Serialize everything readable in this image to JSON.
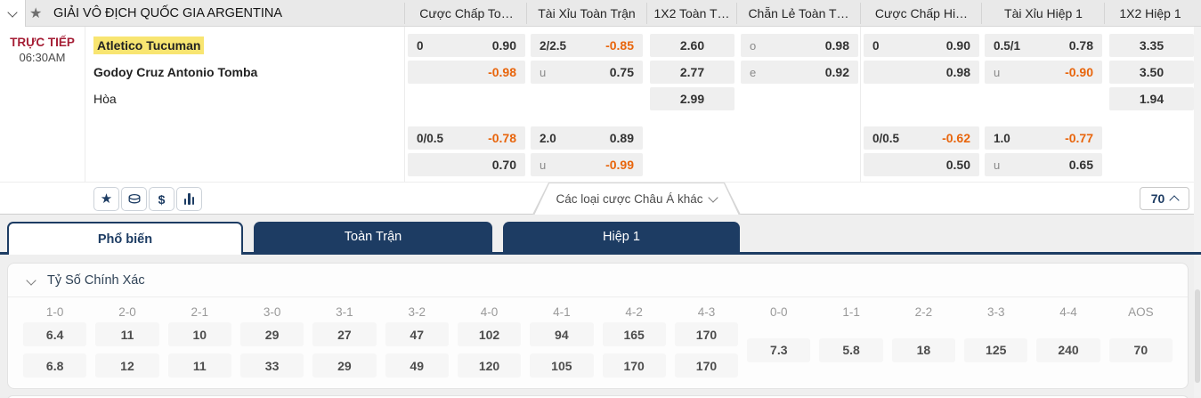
{
  "league": {
    "title": "GIẢI VÔ ĐỊCH QUỐC GIA ARGENTINA",
    "column_headers": {
      "ft_handicap": "Cược Chấp To…",
      "ft_ou": "Tài Xỉu Toàn Trận",
      "ft_1x2": "1X2 Toàn T…",
      "ft_oe": "Chẵn Lẻ Toàn T…",
      "h1_handicap": "Cược Chấp Hi…",
      "h1_ou": "Tài Xỉu Hiệp 1",
      "h1_1x2": "1X2 Hiệp 1"
    }
  },
  "match": {
    "status": "TRỰC TIẾP",
    "time": "06:30AM",
    "home_team": "Atletico Tucuman",
    "away_team": "Godoy Cruz Antonio Tomba",
    "draw_label": "Hòa"
  },
  "odds": {
    "ft_handicap": {
      "r1": {
        "label": "0",
        "value": "0.90"
      },
      "r2": {
        "label": "",
        "value": "-0.98"
      }
    },
    "ft_ou": {
      "r1": {
        "label": "2/2.5",
        "value": "-0.85"
      },
      "r2": {
        "label": "u",
        "value": "0.75"
      }
    },
    "ft_1x2": {
      "home": "2.60",
      "away": "2.77",
      "draw": "2.99"
    },
    "ft_oe": {
      "r1": {
        "label": "o",
        "value": "0.98"
      },
      "r2": {
        "label": "e",
        "value": "0.92"
      }
    },
    "h1_handicap": {
      "r1": {
        "label": "0",
        "value": "0.90"
      },
      "r2": {
        "label": "",
        "value": "0.98"
      }
    },
    "h1_ou": {
      "r1": {
        "label": "0.5/1",
        "value": "0.78"
      },
      "r2": {
        "label": "u",
        "value": "-0.90"
      }
    },
    "h1_1x2": {
      "home": "3.35",
      "away": "3.50",
      "draw": "1.94"
    }
  },
  "odds_extra": {
    "ft_handicap": {
      "r1": {
        "label": "0/0.5",
        "value": "-0.78"
      },
      "r2": {
        "label": "",
        "value": "0.70"
      }
    },
    "ft_ou": {
      "r1": {
        "label": "2.0",
        "value": "0.89"
      },
      "r2": {
        "label": "u",
        "value": "-0.99"
      }
    },
    "h1_handicap": {
      "r1": {
        "label": "0/0.5",
        "value": "-0.62"
      },
      "r2": {
        "label": "",
        "value": "0.50"
      }
    },
    "h1_ou": {
      "r1": {
        "label": "1.0",
        "value": "-0.77"
      },
      "r2": {
        "label": "u",
        "value": "0.65"
      }
    }
  },
  "toolbar": {
    "more_bets_label": "Các loại cược Châu Á khác",
    "market_count": "70"
  },
  "tabs": [
    {
      "label": "Phổ biến"
    },
    {
      "label": "Toàn Trận"
    },
    {
      "label": "Hiệp 1"
    }
  ],
  "correct_score": {
    "title": "Tỷ Số Chính Xác",
    "columns": [
      {
        "score": "1-0",
        "odds": [
          "6.4",
          "6.8"
        ]
      },
      {
        "score": "2-0",
        "odds": [
          "11",
          "12"
        ]
      },
      {
        "score": "2-1",
        "odds": [
          "10",
          "11"
        ]
      },
      {
        "score": "3-0",
        "odds": [
          "29",
          "33"
        ]
      },
      {
        "score": "3-1",
        "odds": [
          "27",
          "29"
        ]
      },
      {
        "score": "3-2",
        "odds": [
          "47",
          "49"
        ]
      },
      {
        "score": "4-0",
        "odds": [
          "102",
          "120"
        ]
      },
      {
        "score": "4-1",
        "odds": [
          "94",
          "105"
        ]
      },
      {
        "score": "4-2",
        "odds": [
          "165",
          "170"
        ]
      },
      {
        "score": "4-3",
        "odds": [
          "170",
          "170"
        ]
      },
      {
        "score": "0-0",
        "odds": [
          "7.3"
        ]
      },
      {
        "score": "1-1",
        "odds": [
          "5.8"
        ]
      },
      {
        "score": "2-2",
        "odds": [
          "18"
        ]
      },
      {
        "score": "3-3",
        "odds": [
          "125"
        ]
      },
      {
        "score": "4-4",
        "odds": [
          "240"
        ]
      },
      {
        "score": "AOS",
        "odds": [
          "70"
        ]
      }
    ]
  },
  "colors": {
    "navy": "#1d3c63",
    "orange_negative": "#e8650c",
    "live_red": "#a51e35",
    "highlight_yellow": "#f8e571"
  }
}
